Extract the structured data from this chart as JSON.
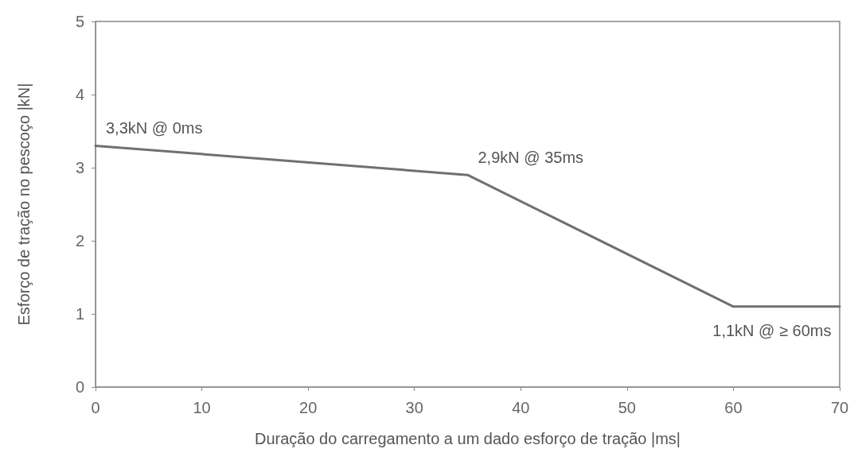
{
  "chart_data": {
    "type": "line",
    "xlabel": "Duração do carregamento a um dado esforço de tração |ms|",
    "ylabel": "Esforço de tração no pescoço |kN|",
    "x": [
      0,
      35,
      60,
      70
    ],
    "series": [
      {
        "color": "#707070",
        "values": [
          3.3,
          2.9,
          1.1,
          1.1
        ]
      }
    ],
    "xlim": [
      0,
      70
    ],
    "xticks": [
      0,
      10,
      20,
      30,
      40,
      50,
      60,
      70
    ],
    "ylim": [
      0,
      5
    ],
    "yticks": [
      0,
      1,
      2,
      3,
      4,
      5
    ],
    "grid": false,
    "marker": "none",
    "line_style": "solid",
    "annotations": [
      {
        "text": "3,3kN @ 0ms",
        "x": 0,
        "y": 3.3
      },
      {
        "text": "2,9kN @ 35ms",
        "x": 35,
        "y": 2.9
      },
      {
        "text": "1,1kN @ ≥ 60ms",
        "x": 60,
        "y": 1.1
      }
    ]
  }
}
